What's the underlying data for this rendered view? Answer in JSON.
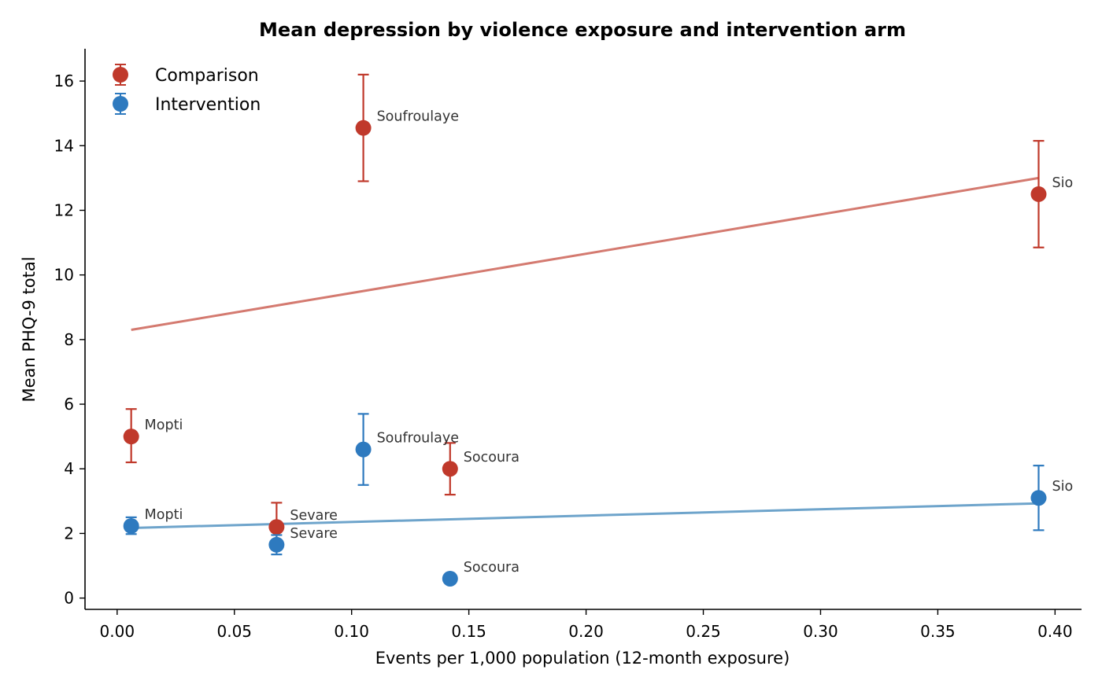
{
  "chart_data": {
    "type": "scatter",
    "title": "Mean depression by violence exposure and intervention arm",
    "xlabel": "Events per 1,000 population (12-month exposure)",
    "ylabel": "Mean PHQ-9 total",
    "xlim": [
      -0.0137,
      0.4113
    ],
    "ylim": [
      -0.35,
      17.0
    ],
    "x_ticks": [
      0.0,
      0.05,
      0.1,
      0.15,
      0.2,
      0.25,
      0.3,
      0.35,
      0.4
    ],
    "x_tick_labels": [
      "0.00",
      "0.05",
      "0.10",
      "0.15",
      "0.20",
      "0.25",
      "0.30",
      "0.35",
      "0.40"
    ],
    "y_ticks": [
      0,
      2,
      4,
      6,
      8,
      10,
      12,
      14,
      16
    ],
    "y_tick_labels": [
      "0",
      "2",
      "4",
      "6",
      "8",
      "10",
      "12",
      "14",
      "16"
    ],
    "grid": false,
    "legend_position": "top-left",
    "series": [
      {
        "name": "Comparison",
        "color": "#c0392b",
        "points": [
          {
            "label": "Mopti",
            "x": 0.006,
            "y": 5.0,
            "err_low": 4.2,
            "err_high": 5.85
          },
          {
            "label": "Sevare",
            "x": 0.068,
            "y": 2.2,
            "err_low": 1.5,
            "err_high": 2.95
          },
          {
            "label": "Soufroulaye",
            "x": 0.105,
            "y": 14.55,
            "err_low": 12.9,
            "err_high": 16.2
          },
          {
            "label": "Socoura",
            "x": 0.142,
            "y": 4.0,
            "err_low": 3.2,
            "err_high": 4.8
          },
          {
            "label": "Sio",
            "x": 0.393,
            "y": 12.5,
            "err_low": 10.85,
            "err_high": 14.15
          }
        ],
        "trend": {
          "color": "#d47a70",
          "x": [
            0.006,
            0.393
          ],
          "y": [
            8.3,
            13.0
          ]
        }
      },
      {
        "name": "Intervention",
        "color": "#2e7abf",
        "points": [
          {
            "label": "Mopti",
            "x": 0.006,
            "y": 2.23,
            "err_low": 1.98,
            "err_high": 2.5
          },
          {
            "label": "Sevare",
            "x": 0.068,
            "y": 1.65,
            "err_low": 1.35,
            "err_high": 1.95
          },
          {
            "label": "Soufroulaye",
            "x": 0.105,
            "y": 4.6,
            "err_low": 3.5,
            "err_high": 5.7
          },
          {
            "label": "Socoura",
            "x": 0.142,
            "y": 0.6,
            "err_low": 0.6,
            "err_high": 0.6
          },
          {
            "label": "Sio",
            "x": 0.393,
            "y": 3.1,
            "err_low": 2.1,
            "err_high": 4.1
          }
        ],
        "trend": {
          "color": "#6ea4cb",
          "x": [
            0.006,
            0.393
          ],
          "y": [
            2.17,
            2.93
          ]
        }
      }
    ]
  }
}
